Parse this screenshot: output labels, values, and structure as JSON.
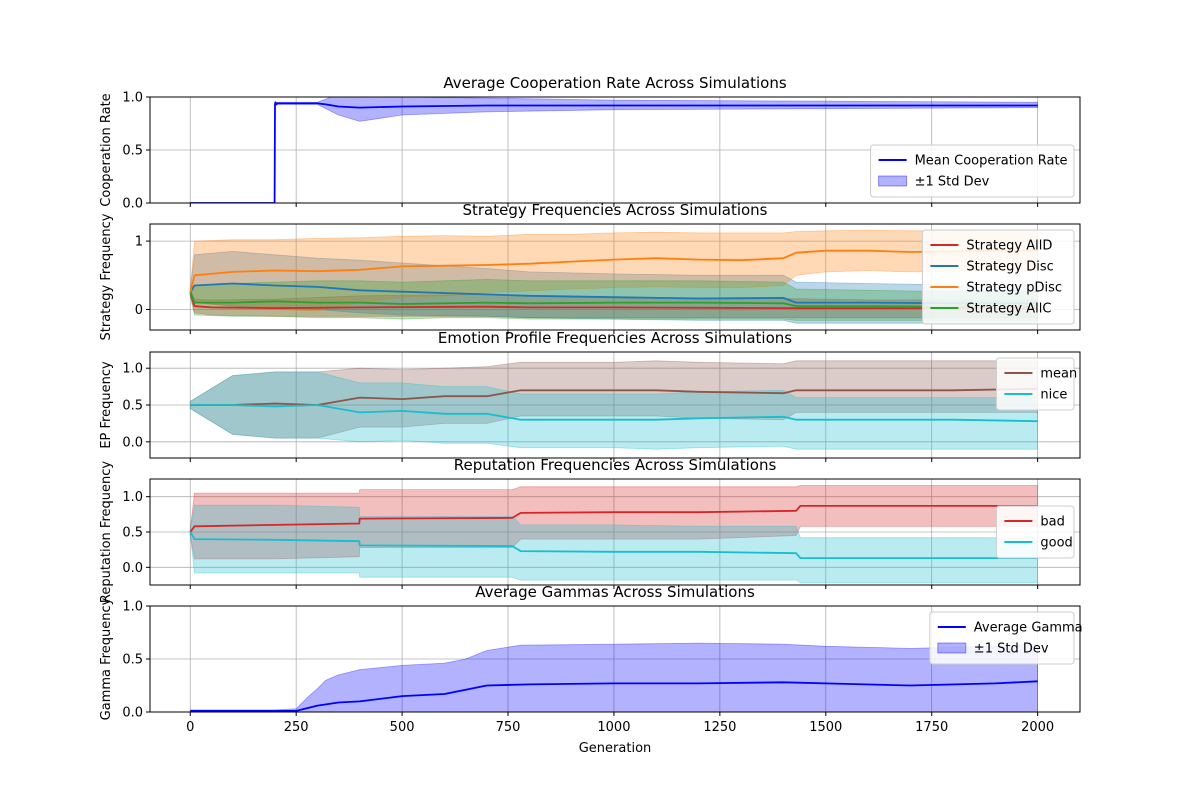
{
  "figure": {
    "x_label": "Generation"
  },
  "chart_data": [
    {
      "type": "line",
      "title": "Average Cooperation Rate Across Simulations",
      "xlabel": "",
      "ylabel": "Cooperation Rate",
      "xlim": [
        -95,
        2100
      ],
      "ylim": [
        0,
        1
      ],
      "yticks": [
        0.0,
        0.5,
        1.0
      ],
      "ytick_labels": [
        "0.0",
        "0.5",
        "1.0"
      ],
      "grid": true,
      "legend_loc": "lower right",
      "series": [
        {
          "name": "Mean Cooperation Rate",
          "kind": "line",
          "color": "#0000ff",
          "x": [
            0,
            199,
            200,
            201,
            203,
            206,
            250,
            300,
            320,
            350,
            400,
            500,
            700,
            1000,
            1500,
            2000
          ],
          "y": [
            0,
            0,
            0.93,
            0.95,
            0.93,
            0.94,
            0.94,
            0.94,
            0.93,
            0.91,
            0.9,
            0.91,
            0.92,
            0.92,
            0.92,
            0.92
          ]
        },
        {
          "name": "±1 Std Dev",
          "kind": "band",
          "color": "#0000ff",
          "x": [
            0,
            199,
            200,
            250,
            300,
            320,
            350,
            400,
            450,
            500,
            700,
            1000,
            1500,
            2000
          ],
          "lower": [
            0,
            0,
            0.93,
            0.93,
            0.93,
            0.89,
            0.83,
            0.77,
            0.8,
            0.83,
            0.86,
            0.88,
            0.89,
            0.9
          ],
          "upper": [
            0,
            0,
            0.95,
            0.95,
            0.95,
            0.98,
            1.03,
            1.04,
            1.02,
            1.0,
            0.99,
            0.97,
            0.96,
            0.95
          ]
        }
      ]
    },
    {
      "type": "line",
      "title": "Strategy Frequencies Across Simulations",
      "xlabel": "",
      "ylabel": "Strategy Frequency",
      "xlim": [
        -95,
        2100
      ],
      "ylim": [
        -0.3,
        1.25
      ],
      "yticks": [
        0,
        1
      ],
      "ytick_labels": [
        "0",
        "1"
      ],
      "grid": true,
      "legend_loc": "upper right",
      "series": [
        {
          "name": "Strategy AllD",
          "color": "#d62728",
          "x": [
            0,
            10,
            50,
            200,
            400,
            700,
            800,
            1000,
            1400,
            1600,
            2000
          ],
          "y": [
            0.25,
            0.05,
            0.03,
            0.02,
            0.03,
            0.04,
            0.03,
            0.03,
            0.02,
            0.02,
            0.02
          ],
          "lower": [
            0.2,
            -0.05,
            -0.08,
            -0.1,
            -0.1,
            -0.1,
            -0.12,
            -0.12,
            -0.12,
            -0.12,
            -0.12
          ],
          "upper": [
            0.3,
            0.15,
            0.14,
            0.15,
            0.2,
            0.22,
            0.2,
            0.18,
            0.16,
            0.14,
            0.14
          ]
        },
        {
          "name": "Strategy Disc",
          "color": "#1f77b4",
          "x": [
            0,
            10,
            100,
            200,
            300,
            400,
            500,
            700,
            800,
            1000,
            1200,
            1400,
            1430,
            1600,
            1800,
            2000
          ],
          "y": [
            0.25,
            0.35,
            0.38,
            0.35,
            0.33,
            0.28,
            0.26,
            0.22,
            0.2,
            0.18,
            0.16,
            0.17,
            0.1,
            0.1,
            0.09,
            0.09
          ],
          "lower": [
            0.2,
            0.1,
            0.05,
            0.02,
            0.0,
            -0.05,
            -0.08,
            -0.1,
            -0.12,
            -0.14,
            -0.16,
            -0.16,
            -0.2,
            -0.2,
            -0.2,
            -0.2
          ],
          "upper": [
            0.3,
            0.8,
            0.85,
            0.8,
            0.75,
            0.72,
            0.68,
            0.6,
            0.55,
            0.52,
            0.5,
            0.5,
            0.4,
            0.38,
            0.36,
            0.36
          ]
        },
        {
          "name": "Strategy pDisc",
          "color": "#ff7f0e",
          "x": [
            0,
            10,
            100,
            200,
            300,
            400,
            500,
            600,
            700,
            800,
            900,
            1000,
            1100,
            1200,
            1300,
            1400,
            1430,
            1500,
            1600,
            1700,
            1800,
            1900,
            2000
          ],
          "y": [
            0.25,
            0.5,
            0.55,
            0.57,
            0.56,
            0.58,
            0.63,
            0.64,
            0.65,
            0.67,
            0.7,
            0.73,
            0.75,
            0.73,
            0.72,
            0.75,
            0.83,
            0.86,
            0.86,
            0.84,
            0.85,
            0.86,
            0.86
          ],
          "lower": [
            0.2,
            0.1,
            0.05,
            0.0,
            -0.02,
            0.1,
            0.18,
            0.2,
            0.25,
            0.27,
            0.3,
            0.32,
            0.33,
            0.32,
            0.32,
            0.35,
            0.5,
            0.55,
            0.57,
            0.55,
            0.56,
            0.57,
            0.57
          ],
          "upper": [
            0.3,
            1.0,
            1.02,
            1.02,
            1.04,
            1.05,
            1.07,
            1.08,
            1.07,
            1.1,
            1.1,
            1.12,
            1.13,
            1.12,
            1.12,
            1.12,
            1.14,
            1.15,
            1.16,
            1.15,
            1.15,
            1.16,
            1.16
          ]
        },
        {
          "name": "Strategy AllC",
          "color": "#2ca02c",
          "x": [
            0,
            10,
            100,
            200,
            300,
            400,
            500,
            600,
            700,
            800,
            1000,
            1200,
            1400,
            1430,
            1600,
            1800,
            2000
          ],
          "y": [
            0.25,
            0.1,
            0.1,
            0.12,
            0.1,
            0.1,
            0.08,
            0.09,
            0.1,
            0.09,
            0.1,
            0.1,
            0.09,
            0.05,
            0.05,
            0.04,
            0.04
          ],
          "lower": [
            0.2,
            -0.08,
            -0.1,
            -0.1,
            -0.12,
            -0.12,
            -0.14,
            -0.12,
            -0.12,
            -0.14,
            -0.14,
            -0.14,
            -0.14,
            -0.16,
            -0.16,
            -0.16,
            -0.16
          ],
          "upper": [
            0.3,
            0.35,
            0.38,
            0.4,
            0.42,
            0.42,
            0.4,
            0.42,
            0.44,
            0.42,
            0.42,
            0.42,
            0.4,
            0.3,
            0.28,
            0.26,
            0.26
          ]
        }
      ]
    },
    {
      "type": "line",
      "title": "Emotion Profile Frequencies Across Simulations",
      "xlabel": "",
      "ylabel": "EP Frequency",
      "xlim": [
        -95,
        2100
      ],
      "ylim": [
        -0.22,
        1.22
      ],
      "yticks": [
        0.0,
        0.5,
        1.0
      ],
      "ytick_labels": [
        "0.0",
        "0.5",
        "1.0"
      ],
      "grid": true,
      "legend_loc": "upper right",
      "series": [
        {
          "name": "mean",
          "color": "#8c564b",
          "x": [
            0,
            100,
            200,
            300,
            400,
            500,
            600,
            700,
            780,
            900,
            1000,
            1100,
            1200,
            1400,
            1430,
            1600,
            1800,
            2000
          ],
          "y": [
            0.5,
            0.5,
            0.52,
            0.5,
            0.6,
            0.58,
            0.62,
            0.62,
            0.7,
            0.7,
            0.7,
            0.7,
            0.68,
            0.66,
            0.7,
            0.7,
            0.7,
            0.72
          ],
          "lower": [
            0.45,
            0.1,
            0.05,
            0.05,
            0.2,
            0.2,
            0.25,
            0.25,
            0.35,
            0.35,
            0.35,
            0.35,
            0.32,
            0.3,
            0.4,
            0.4,
            0.4,
            0.4
          ],
          "upper": [
            0.55,
            0.9,
            0.95,
            0.95,
            1.0,
            0.98,
            1.0,
            1.02,
            1.08,
            1.08,
            1.08,
            1.1,
            1.08,
            1.06,
            1.1,
            1.1,
            1.1,
            1.1
          ]
        },
        {
          "name": "nice",
          "color": "#17becf",
          "x": [
            0,
            100,
            200,
            300,
            400,
            500,
            600,
            700,
            780,
            900,
            1000,
            1100,
            1200,
            1400,
            1430,
            1600,
            1800,
            2000
          ],
          "y": [
            0.5,
            0.5,
            0.48,
            0.5,
            0.4,
            0.42,
            0.38,
            0.38,
            0.3,
            0.3,
            0.3,
            0.3,
            0.32,
            0.34,
            0.3,
            0.3,
            0.3,
            0.28
          ],
          "lower": [
            0.45,
            0.1,
            0.05,
            0.05,
            0.0,
            0.02,
            -0.02,
            -0.02,
            -0.08,
            -0.08,
            -0.08,
            -0.1,
            -0.08,
            -0.06,
            -0.1,
            -0.1,
            -0.1,
            -0.1
          ],
          "upper": [
            0.55,
            0.9,
            0.95,
            0.95,
            0.8,
            0.8,
            0.75,
            0.75,
            0.65,
            0.65,
            0.65,
            0.65,
            0.68,
            0.7,
            0.6,
            0.6,
            0.6,
            0.6
          ]
        }
      ]
    },
    {
      "type": "line",
      "title": "Reputation Frequencies Across Simulations",
      "xlabel": "",
      "ylabel": "Reputation Frequency",
      "xlim": [
        -95,
        2100
      ],
      "ylim": [
        -0.25,
        1.25
      ],
      "yticks": [
        0.0,
        0.5,
        1.0
      ],
      "ytick_labels": [
        "0.0",
        "0.5",
        "1.0"
      ],
      "grid": true,
      "legend_loc": "center right",
      "series": [
        {
          "name": "bad",
          "color": "#d62728",
          "x": [
            0,
            10,
            200,
            399,
            400,
            760,
            780,
            1000,
            1200,
            1430,
            1440,
            1700,
            2000
          ],
          "y": [
            0.5,
            0.58,
            0.6,
            0.62,
            0.69,
            0.7,
            0.77,
            0.78,
            0.78,
            0.8,
            0.87,
            0.87,
            0.87
          ],
          "lower": [
            0.45,
            0.12,
            0.12,
            0.15,
            0.28,
            0.28,
            0.4,
            0.4,
            0.4,
            0.45,
            0.58,
            0.58,
            0.58
          ],
          "upper": [
            0.55,
            1.05,
            1.05,
            1.05,
            1.1,
            1.1,
            1.14,
            1.14,
            1.14,
            1.14,
            1.16,
            1.16,
            1.16
          ]
        },
        {
          "name": "good",
          "color": "#17becf",
          "x": [
            0,
            10,
            200,
            399,
            400,
            760,
            780,
            1000,
            1200,
            1430,
            1440,
            1700,
            2000
          ],
          "y": [
            0.5,
            0.4,
            0.39,
            0.37,
            0.31,
            0.3,
            0.23,
            0.22,
            0.22,
            0.2,
            0.13,
            0.13,
            0.13
          ],
          "lower": [
            0.45,
            -0.08,
            -0.08,
            -0.08,
            -0.14,
            -0.14,
            -0.18,
            -0.18,
            -0.18,
            -0.18,
            -0.22,
            -0.22,
            -0.22
          ],
          "upper": [
            0.55,
            0.88,
            0.88,
            0.85,
            0.72,
            0.72,
            0.6,
            0.6,
            0.58,
            0.58,
            0.42,
            0.42,
            0.42
          ]
        }
      ]
    },
    {
      "type": "area",
      "title": "Average Gammas Across Simulations",
      "xlabel": "Generation",
      "ylabel": "Gamma Frequency",
      "xlim": [
        -95,
        2100
      ],
      "ylim": [
        0,
        1
      ],
      "yticks": [
        0.0,
        0.5,
        1.0
      ],
      "ytick_labels": [
        "0.0",
        "0.5",
        "1.0"
      ],
      "xticks": [
        0,
        250,
        500,
        750,
        1000,
        1250,
        1500,
        1750,
        2000
      ],
      "xtick_labels": [
        "0",
        "250",
        "500",
        "750",
        "1000",
        "1250",
        "1500",
        "1750",
        "2000"
      ],
      "grid": true,
      "legend_loc": "upper right",
      "series": [
        {
          "name": "Average Gamma",
          "kind": "line",
          "color": "#0000ff",
          "x": [
            0,
            100,
            200,
            250,
            280,
            300,
            350,
            400,
            500,
            600,
            700,
            800,
            1000,
            1200,
            1400,
            1500,
            1700,
            1900,
            2000
          ],
          "y": [
            0.01,
            0.01,
            0.01,
            0.01,
            0.04,
            0.06,
            0.09,
            0.1,
            0.15,
            0.17,
            0.25,
            0.26,
            0.27,
            0.27,
            0.28,
            0.27,
            0.25,
            0.27,
            0.29
          ]
        },
        {
          "name": "±1 Std Dev",
          "kind": "band",
          "color": "#0000ff",
          "x": [
            0,
            100,
            200,
            250,
            280,
            300,
            320,
            350,
            400,
            500,
            600,
            650,
            700,
            780,
            1000,
            1200,
            1400,
            1500,
            1700,
            1900,
            2000
          ],
          "lower": [
            0,
            0,
            0,
            0,
            0,
            0,
            0,
            0,
            0,
            0,
            0,
            0,
            0,
            0,
            0,
            0,
            0,
            0,
            0,
            0,
            0
          ],
          "upper": [
            0.02,
            0.02,
            0.02,
            0.03,
            0.15,
            0.22,
            0.3,
            0.35,
            0.4,
            0.44,
            0.46,
            0.5,
            0.58,
            0.63,
            0.64,
            0.65,
            0.64,
            0.62,
            0.6,
            0.62,
            0.64
          ]
        }
      ]
    }
  ]
}
